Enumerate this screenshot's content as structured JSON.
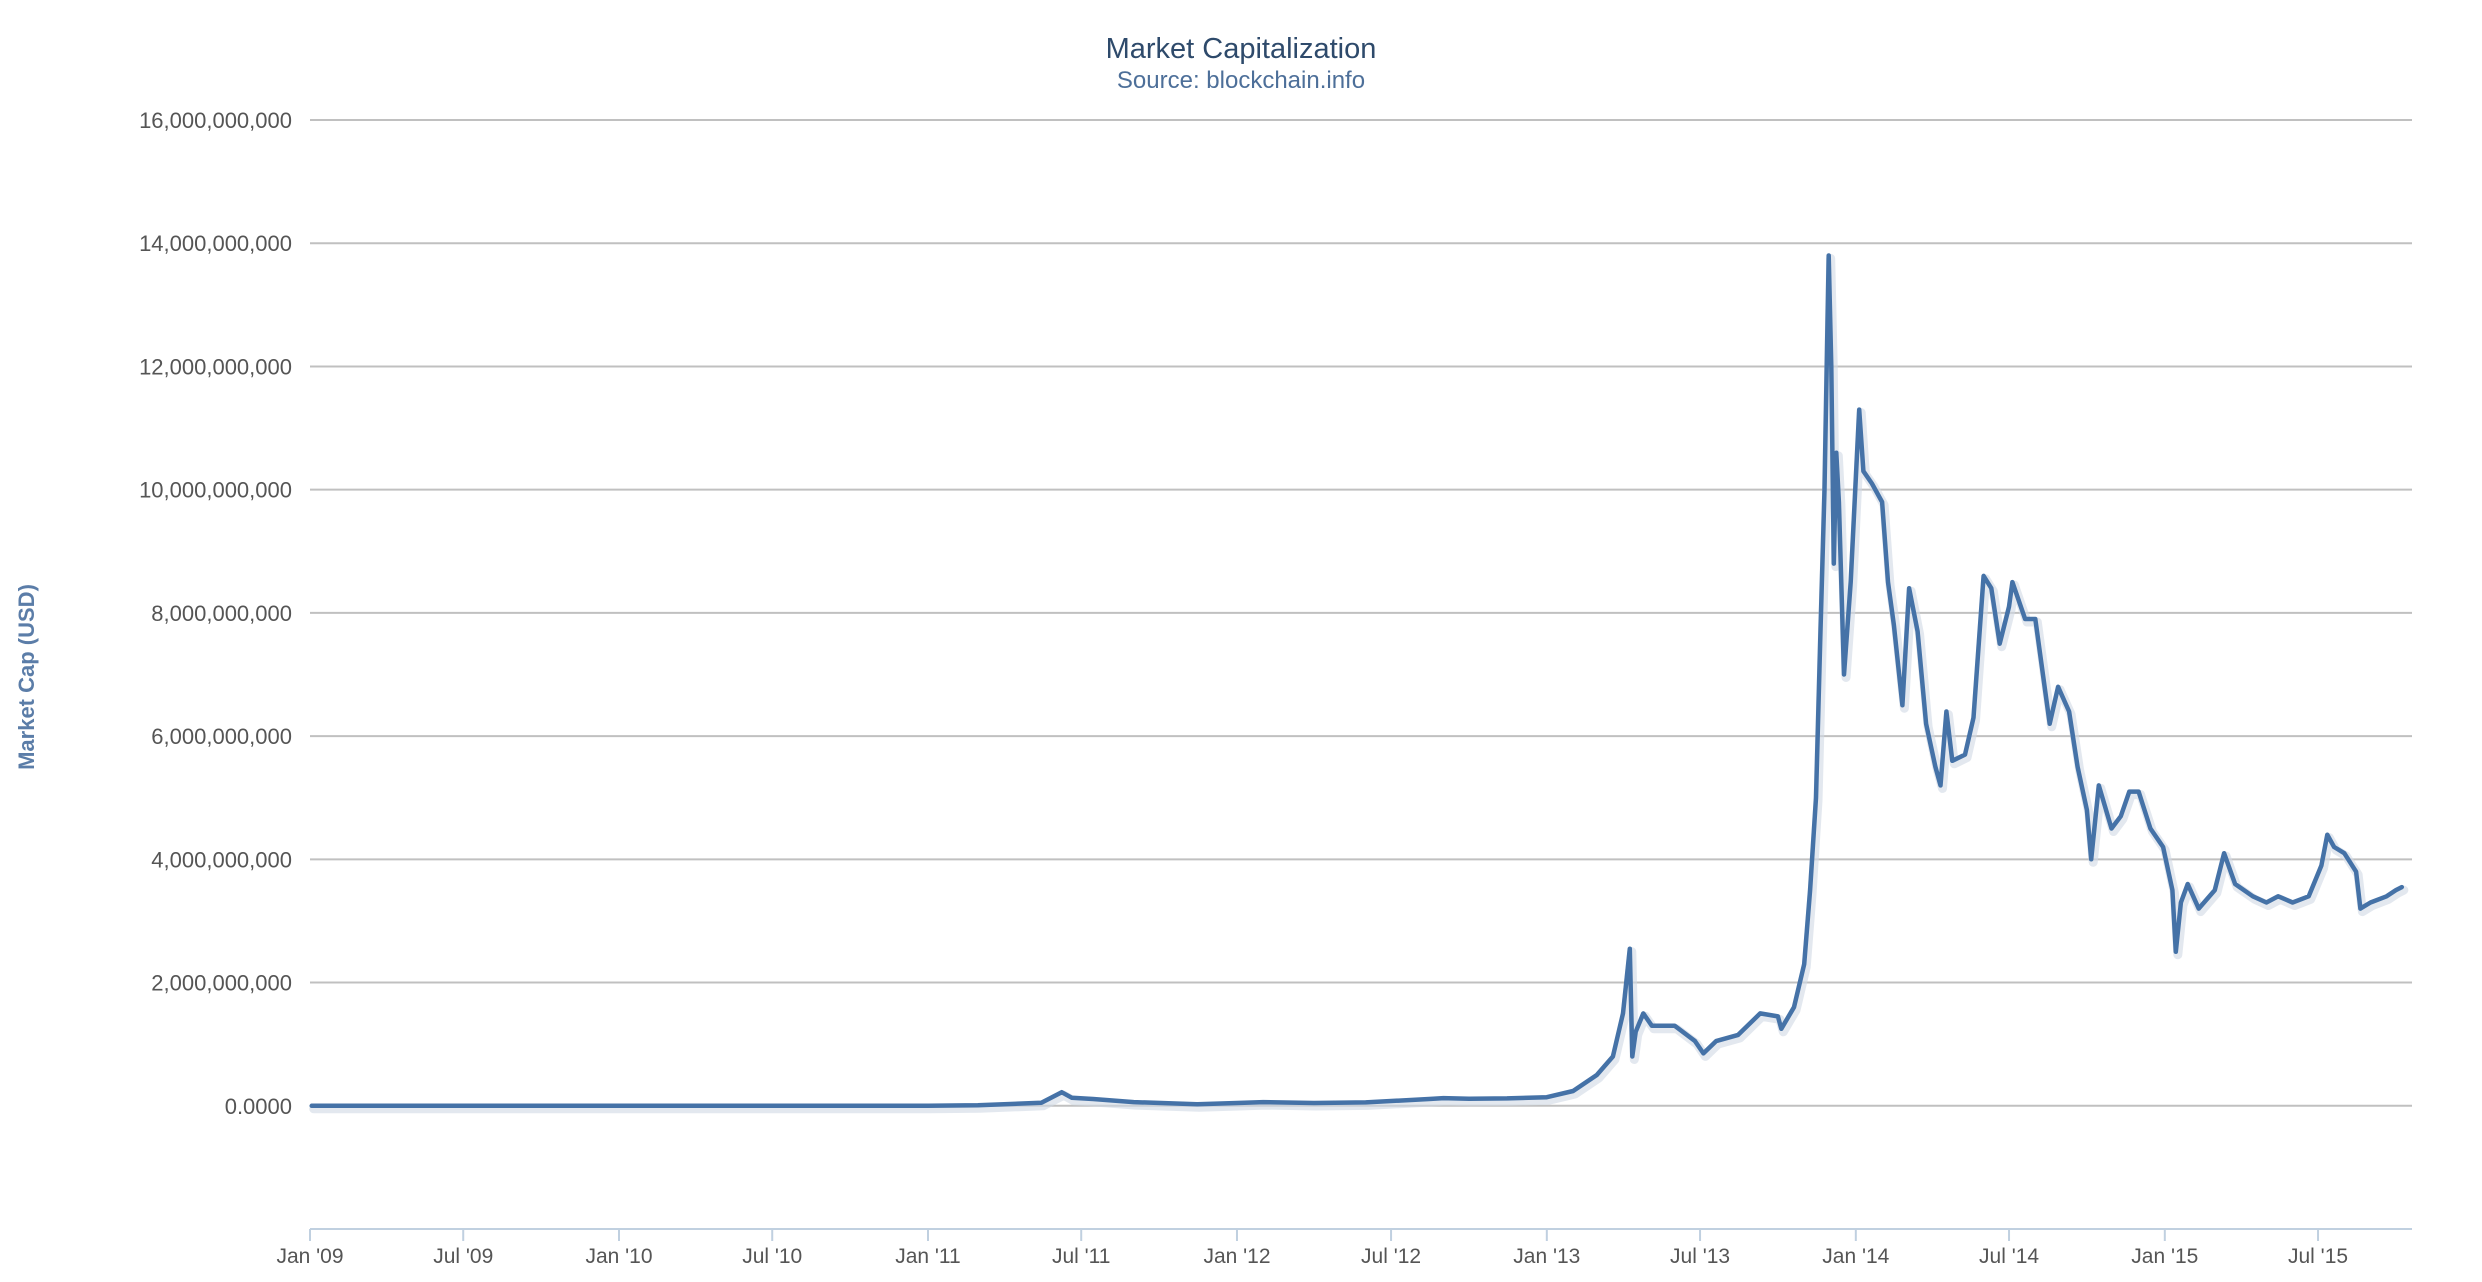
{
  "chart_data": {
    "type": "line",
    "title": "Market Capitalization",
    "subtitle": "Source: blockchain.info",
    "ylabel": "Market Cap (USD)",
    "xlabel": "",
    "xlim": [
      "2009-01-01",
      "2015-10-20"
    ],
    "ylim": [
      -2000000000,
      16000000000
    ],
    "grid": true,
    "x_tick_labels": [
      "Jan '09",
      "Jul '09",
      "Jan '10",
      "Jul '10",
      "Jan '11",
      "Jul '11",
      "Jan '12",
      "Jul '12",
      "Jan '13",
      "Jul '13",
      "Jan '14",
      "Jul '14",
      "Jan '15",
      "Jul '15"
    ],
    "x_ticks": [
      "2009-01-01",
      "2009-07-01",
      "2010-01-01",
      "2010-07-01",
      "2011-01-01",
      "2011-07-01",
      "2012-01-01",
      "2012-07-01",
      "2013-01-01",
      "2013-07-01",
      "2014-01-01",
      "2014-07-01",
      "2015-01-01",
      "2015-07-01"
    ],
    "y_tick_labels": [
      "16,000,000,000",
      "14,000,000,000",
      "12,000,000,000",
      "10,000,000,000",
      "8,000,000,000",
      "6,000,000,000",
      "4,000,000,000",
      "2,000,000,000",
      "0.0000"
    ],
    "y_ticks": [
      16000000000,
      14000000000,
      12000000000,
      10000000000,
      8000000000,
      6000000000,
      4000000000,
      2000000000,
      0
    ],
    "series": [
      {
        "color": "#4572a7",
        "points": [
          [
            "2009-01-03",
            0
          ],
          [
            "2010-07-15",
            0
          ],
          [
            "2011-01-01",
            2000000
          ],
          [
            "2011-03-01",
            8000000
          ],
          [
            "2011-05-15",
            50000000
          ],
          [
            "2011-06-08",
            220000000
          ],
          [
            "2011-06-20",
            130000000
          ],
          [
            "2011-07-15",
            110000000
          ],
          [
            "2011-09-01",
            60000000
          ],
          [
            "2011-11-15",
            25000000
          ],
          [
            "2012-01-01",
            45000000
          ],
          [
            "2012-02-01",
            60000000
          ],
          [
            "2012-04-01",
            45000000
          ],
          [
            "2012-06-01",
            55000000
          ],
          [
            "2012-08-15",
            110000000
          ],
          [
            "2012-09-01",
            125000000
          ],
          [
            "2012-10-01",
            115000000
          ],
          [
            "2012-11-15",
            120000000
          ],
          [
            "2013-01-01",
            140000000
          ],
          [
            "2013-02-01",
            240000000
          ],
          [
            "2013-03-01",
            500000000
          ],
          [
            "2013-03-20",
            800000000
          ],
          [
            "2013-04-01",
            1500000000
          ],
          [
            "2013-04-09",
            2550000000
          ],
          [
            "2013-04-12",
            800000000
          ],
          [
            "2013-04-16",
            1200000000
          ],
          [
            "2013-04-25",
            1500000000
          ],
          [
            "2013-05-05",
            1300000000
          ],
          [
            "2013-06-01",
            1300000000
          ],
          [
            "2013-06-25",
            1050000000
          ],
          [
            "2013-07-05",
            850000000
          ],
          [
            "2013-07-20",
            1050000000
          ],
          [
            "2013-08-15",
            1150000000
          ],
          [
            "2013-09-10",
            1500000000
          ],
          [
            "2013-10-01",
            1450000000
          ],
          [
            "2013-10-05",
            1250000000
          ],
          [
            "2013-10-20",
            1600000000
          ],
          [
            "2013-11-01",
            2300000000
          ],
          [
            "2013-11-08",
            3500000000
          ],
          [
            "2013-11-15",
            5000000000
          ],
          [
            "2013-11-20",
            7600000000
          ],
          [
            "2013-11-25",
            10000000000
          ],
          [
            "2013-11-30",
            13800000000
          ],
          [
            "2013-12-03",
            12000000000
          ],
          [
            "2013-12-06",
            8800000000
          ],
          [
            "2013-12-09",
            10600000000
          ],
          [
            "2013-12-12",
            9800000000
          ],
          [
            "2013-12-18",
            7000000000
          ],
          [
            "2013-12-26",
            8500000000
          ],
          [
            "2014-01-05",
            11300000000
          ],
          [
            "2014-01-10",
            10300000000
          ],
          [
            "2014-01-20",
            10100000000
          ],
          [
            "2014-02-01",
            9800000000
          ],
          [
            "2014-02-08",
            8500000000
          ],
          [
            "2014-02-15",
            7800000000
          ],
          [
            "2014-02-25",
            6500000000
          ],
          [
            "2014-03-05",
            8400000000
          ],
          [
            "2014-03-15",
            7700000000
          ],
          [
            "2014-03-25",
            6200000000
          ],
          [
            "2014-04-05",
            5500000000
          ],
          [
            "2014-04-11",
            5200000000
          ],
          [
            "2014-04-18",
            6400000000
          ],
          [
            "2014-04-25",
            5600000000
          ],
          [
            "2014-05-10",
            5700000000
          ],
          [
            "2014-05-20",
            6300000000
          ],
          [
            "2014-06-01",
            8600000000
          ],
          [
            "2014-06-10",
            8400000000
          ],
          [
            "2014-06-20",
            7500000000
          ],
          [
            "2014-07-01",
            8100000000
          ],
          [
            "2014-07-05",
            8500000000
          ],
          [
            "2014-07-20",
            7900000000
          ],
          [
            "2014-08-01",
            7900000000
          ],
          [
            "2014-08-18",
            6200000000
          ],
          [
            "2014-08-28",
            6800000000
          ],
          [
            "2014-09-10",
            6400000000
          ],
          [
            "2014-09-20",
            5500000000
          ],
          [
            "2014-10-01",
            4800000000
          ],
          [
            "2014-10-06",
            4000000000
          ],
          [
            "2014-10-15",
            5200000000
          ],
          [
            "2014-10-30",
            4500000000
          ],
          [
            "2014-11-10",
            4700000000
          ],
          [
            "2014-11-20",
            5100000000
          ],
          [
            "2014-12-01",
            5100000000
          ],
          [
            "2014-12-15",
            4500000000
          ],
          [
            "2014-12-30",
            4200000000
          ],
          [
            "2015-01-10",
            3500000000
          ],
          [
            "2015-01-14",
            2500000000
          ],
          [
            "2015-01-20",
            3300000000
          ],
          [
            "2015-01-28",
            3600000000
          ],
          [
            "2015-02-10",
            3200000000
          ],
          [
            "2015-03-01",
            3500000000
          ],
          [
            "2015-03-12",
            4100000000
          ],
          [
            "2015-03-25",
            3600000000
          ],
          [
            "2015-04-15",
            3400000000
          ],
          [
            "2015-05-01",
            3300000000
          ],
          [
            "2015-05-15",
            3400000000
          ],
          [
            "2015-06-01",
            3300000000
          ],
          [
            "2015-06-20",
            3400000000
          ],
          [
            "2015-07-05",
            3900000000
          ],
          [
            "2015-07-12",
            4400000000
          ],
          [
            "2015-07-20",
            4200000000
          ],
          [
            "2015-08-01",
            4100000000
          ],
          [
            "2015-08-15",
            3800000000
          ],
          [
            "2015-08-20",
            3200000000
          ],
          [
            "2015-09-01",
            3300000000
          ],
          [
            "2015-09-20",
            3400000000
          ],
          [
            "2015-10-01",
            3500000000
          ],
          [
            "2015-10-08",
            3550000000
          ]
        ]
      }
    ]
  }
}
